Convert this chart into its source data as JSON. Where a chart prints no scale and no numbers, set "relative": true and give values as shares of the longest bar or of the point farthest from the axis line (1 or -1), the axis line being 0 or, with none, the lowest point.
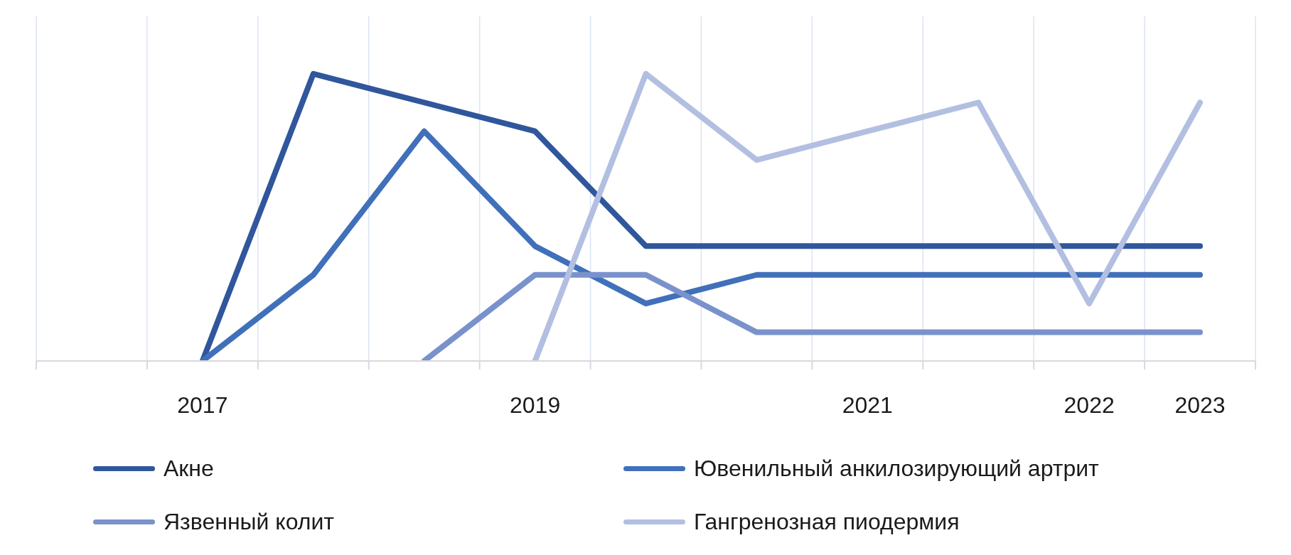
{
  "chart_data": {
    "type": "line",
    "categories": [
      null,
      "2017",
      null,
      null,
      "2019",
      null,
      null,
      "2021",
      null,
      "2022",
      "2023"
    ],
    "series": [
      {
        "name": "Акне",
        "color": "#30569c",
        "values": [
          null,
          0,
          1,
          0.9,
          0.8,
          0.4,
          0.4,
          0.4,
          0.4,
          0.4,
          0.4
        ]
      },
      {
        "name": "Ювенильный анкилозирующий артрит",
        "color": "#4170ba",
        "values": [
          null,
          0,
          0.3,
          0.8,
          0.4,
          0.2,
          0.3,
          0.3,
          0.3,
          0.3,
          0.3
        ]
      },
      {
        "name": "Язвенный колит",
        "color": "#7a92cc",
        "values": [
          null,
          null,
          null,
          0,
          0.3,
          0.3,
          0.1,
          0.1,
          0.1,
          0.1,
          0.1
        ]
      },
      {
        "name": "Гангренозная пиодермия",
        "color": "#b2bfe1",
        "values": [
          null,
          null,
          null,
          null,
          0,
          1,
          0.7,
          0.8,
          0.9,
          0.2,
          0.9
        ]
      }
    ],
    "relative": true,
    "grid": "x",
    "legend": "bottom"
  }
}
